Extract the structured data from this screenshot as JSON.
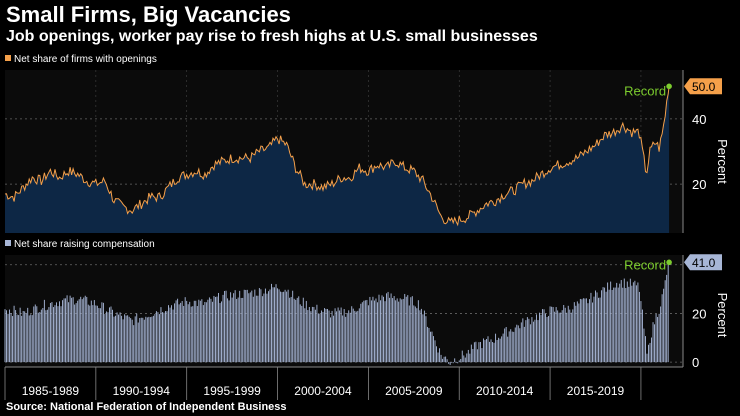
{
  "header": {
    "title": "Small Firms, Big Vacancies",
    "subtitle": "Job openings, worker pay rise to fresh highs at U.S. small businesses",
    "source": "Source: National Federation of Independent Business"
  },
  "colors": {
    "background": "#000000",
    "grid": "#666666",
    "openings_line": "#f5a04a",
    "openings_fill": "#0d2745",
    "comp_bar": "#a7b6d6",
    "record": "#7ccc2e",
    "tick_text": "#ffffff"
  },
  "chart_data": [
    {
      "type": "area",
      "title": "Net share of firms with openings",
      "legend": "Net share of firms with openings",
      "ylabel": "Percent",
      "ylim": [
        5,
        55
      ],
      "yticks": [
        20,
        40
      ],
      "xlim": [
        1985,
        2021.6
      ],
      "annotation": {
        "label": "Record",
        "value": "50.0"
      },
      "anchors": [
        [
          1985.0,
          17
        ],
        [
          1985.5,
          16
        ],
        [
          1986.0,
          19
        ],
        [
          1986.5,
          22
        ],
        [
          1987.0,
          21
        ],
        [
          1987.5,
          24
        ],
        [
          1988.0,
          22
        ],
        [
          1988.5,
          24
        ],
        [
          1989.0,
          23
        ],
        [
          1989.5,
          21
        ],
        [
          1990.0,
          20
        ],
        [
          1990.5,
          21
        ],
        [
          1991.0,
          15
        ],
        [
          1991.5,
          13
        ],
        [
          1992.0,
          12
        ],
        [
          1992.5,
          14
        ],
        [
          1993.0,
          16
        ],
        [
          1993.5,
          16
        ],
        [
          1994.0,
          19
        ],
        [
          1994.5,
          22
        ],
        [
          1995.0,
          23
        ],
        [
          1995.5,
          24
        ],
        [
          1996.0,
          23
        ],
        [
          1996.5,
          26
        ],
        [
          1997.0,
          27
        ],
        [
          1997.5,
          28
        ],
        [
          1998.0,
          28
        ],
        [
          1998.5,
          28
        ],
        [
          1999.0,
          30
        ],
        [
          1999.5,
          31
        ],
        [
          2000.0,
          34
        ],
        [
          2000.5,
          32
        ],
        [
          2001.0,
          25
        ],
        [
          2001.5,
          20
        ],
        [
          2002.0,
          20
        ],
        [
          2002.5,
          19
        ],
        [
          2003.0,
          20
        ],
        [
          2003.5,
          22
        ],
        [
          2004.0,
          22
        ],
        [
          2004.5,
          25
        ],
        [
          2005.0,
          24
        ],
        [
          2005.5,
          26
        ],
        [
          2006.0,
          25
        ],
        [
          2006.5,
          27
        ],
        [
          2007.0,
          25
        ],
        [
          2007.5,
          24
        ],
        [
          2008.0,
          21
        ],
        [
          2008.5,
          16
        ],
        [
          2009.0,
          10
        ],
        [
          2009.5,
          8
        ],
        [
          2010.0,
          9
        ],
        [
          2010.5,
          10
        ],
        [
          2011.0,
          12
        ],
        [
          2011.5,
          14
        ],
        [
          2012.0,
          15
        ],
        [
          2012.5,
          17
        ],
        [
          2013.0,
          18
        ],
        [
          2013.5,
          20
        ],
        [
          2014.0,
          21
        ],
        [
          2014.5,
          23
        ],
        [
          2015.0,
          25
        ],
        [
          2015.5,
          26
        ],
        [
          2016.0,
          27
        ],
        [
          2016.5,
          28
        ],
        [
          2017.0,
          30
        ],
        [
          2017.5,
          32
        ],
        [
          2018.0,
          35
        ],
        [
          2018.5,
          36
        ],
        [
          2019.0,
          38
        ],
        [
          2019.5,
          36
        ],
        [
          2019.9,
          36
        ],
        [
          2020.15,
          28
        ],
        [
          2020.3,
          23
        ],
        [
          2020.5,
          30
        ],
        [
          2020.8,
          33
        ],
        [
          2021.0,
          31
        ],
        [
          2021.2,
          36
        ],
        [
          2021.35,
          42
        ],
        [
          2021.5,
          49
        ],
        [
          2021.55,
          50
        ]
      ]
    },
    {
      "type": "bar",
      "title": "Net share raising compensation",
      "legend": "Net share raising compensation",
      "ylabel": "Percent",
      "ylim": [
        -2,
        44
      ],
      "yticks": [
        0,
        20
      ],
      "xlim": [
        1985,
        2021.6
      ],
      "annotation": {
        "label": "Record",
        "value": "41.0"
      },
      "anchors": [
        [
          1985.0,
          22
        ],
        [
          1986.0,
          20
        ],
        [
          1987.0,
          23
        ],
        [
          1988.0,
          25
        ],
        [
          1989.0,
          26
        ],
        [
          1990.0,
          24
        ],
        [
          1991.0,
          20
        ],
        [
          1992.0,
          17
        ],
        [
          1993.0,
          20
        ],
        [
          1994.0,
          23
        ],
        [
          1995.0,
          25
        ],
        [
          1996.0,
          24
        ],
        [
          1997.0,
          27
        ],
        [
          1998.0,
          28
        ],
        [
          1999.0,
          29
        ],
        [
          2000.0,
          31
        ],
        [
          2000.5,
          30
        ],
        [
          2001.0,
          26
        ],
        [
          2002.0,
          22
        ],
        [
          2003.0,
          20
        ],
        [
          2004.0,
          21
        ],
        [
          2005.0,
          25
        ],
        [
          2006.0,
          27
        ],
        [
          2007.0,
          26
        ],
        [
          2007.8,
          24
        ],
        [
          2008.5,
          12
        ],
        [
          2009.0,
          3
        ],
        [
          2009.5,
          0
        ],
        [
          2010.0,
          2
        ],
        [
          2010.5,
          4
        ],
        [
          2011.0,
          7
        ],
        [
          2012.0,
          10
        ],
        [
          2013.0,
          14
        ],
        [
          2014.0,
          18
        ],
        [
          2015.0,
          21
        ],
        [
          2016.0,
          22
        ],
        [
          2017.0,
          25
        ],
        [
          2018.0,
          30
        ],
        [
          2018.8,
          33
        ],
        [
          2019.5,
          32
        ],
        [
          2019.9,
          31
        ],
        [
          2020.2,
          12
        ],
        [
          2020.35,
          2
        ],
        [
          2020.5,
          10
        ],
        [
          2020.8,
          18
        ],
        [
          2021.0,
          22
        ],
        [
          2021.25,
          29
        ],
        [
          2021.45,
          38
        ],
        [
          2021.55,
          41
        ]
      ]
    }
  ],
  "x_axis": {
    "tick_labels": [
      "1985-1989",
      "1990-1994",
      "1995-1999",
      "2000-2004",
      "2005-2009",
      "2010-2014",
      "2015-2019"
    ]
  }
}
